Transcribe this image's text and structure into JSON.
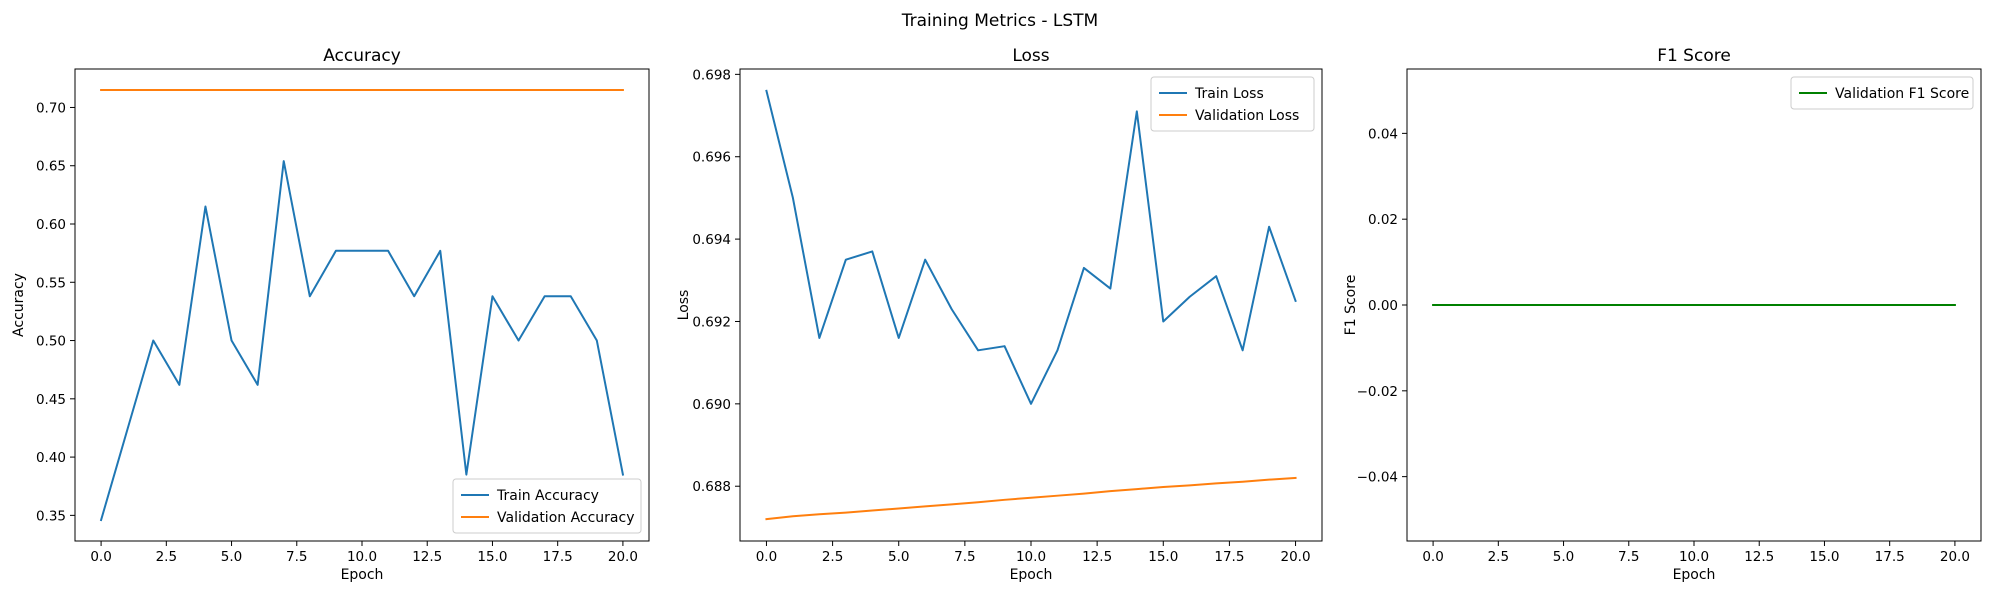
{
  "figure": {
    "suptitle": "Training Metrics - LSTM"
  },
  "chart_data": [
    {
      "type": "line",
      "title": "Accuracy",
      "xlabel": "Epoch",
      "ylabel": "Accuracy",
      "xlim": [
        -1,
        21
      ],
      "ylim": [
        0.328,
        0.733
      ],
      "xticks": [
        0.0,
        2.5,
        5.0,
        7.5,
        10.0,
        12.5,
        15.0,
        17.5,
        20.0
      ],
      "xtick_labels": [
        "0.0",
        "2.5",
        "5.0",
        "7.5",
        "10.0",
        "12.5",
        "15.0",
        "17.5",
        "20.0"
      ],
      "yticks": [
        0.35,
        0.4,
        0.45,
        0.5,
        0.55,
        0.6,
        0.65,
        0.7
      ],
      "ytick_labels": [
        "0.35",
        "0.40",
        "0.45",
        "0.50",
        "0.55",
        "0.60",
        "0.65",
        "0.70"
      ],
      "legend_position": "lower-right",
      "x": [
        0,
        1,
        2,
        3,
        4,
        5,
        6,
        7,
        8,
        9,
        10,
        11,
        12,
        13,
        14,
        15,
        16,
        17,
        18,
        19,
        20
      ],
      "series": [
        {
          "name": "Train Accuracy",
          "color": "#1f77b4",
          "values": [
            0.346,
            0.423,
            0.5,
            0.462,
            0.615,
            0.5,
            0.462,
            0.654,
            0.538,
            0.577,
            0.577,
            0.577,
            0.538,
            0.577,
            0.385,
            0.538,
            0.5,
            0.538,
            0.538,
            0.5,
            0.385
          ]
        },
        {
          "name": "Validation Accuracy",
          "color": "#ff7f0e",
          "values": [
            0.715,
            0.715,
            0.715,
            0.715,
            0.715,
            0.715,
            0.715,
            0.715,
            0.715,
            0.715,
            0.715,
            0.715,
            0.715,
            0.715,
            0.715,
            0.715,
            0.715,
            0.715,
            0.715,
            0.715,
            0.715
          ]
        }
      ]
    },
    {
      "type": "line",
      "title": "Loss",
      "xlabel": "Epoch",
      "ylabel": "Loss",
      "xlim": [
        -1,
        21
      ],
      "ylim": [
        0.68667,
        0.69813
      ],
      "xticks": [
        0.0,
        2.5,
        5.0,
        7.5,
        10.0,
        12.5,
        15.0,
        17.5,
        20.0
      ],
      "xtick_labels": [
        "0.0",
        "2.5",
        "5.0",
        "7.5",
        "10.0",
        "12.5",
        "15.0",
        "17.5",
        "20.0"
      ],
      "yticks": [
        0.688,
        0.69,
        0.692,
        0.694,
        0.696,
        0.698
      ],
      "ytick_labels": [
        "0.688",
        "0.690",
        "0.692",
        "0.694",
        "0.696",
        "0.698"
      ],
      "legend_position": "top-right",
      "x": [
        0,
        1,
        2,
        3,
        4,
        5,
        6,
        7,
        8,
        9,
        10,
        11,
        12,
        13,
        14,
        15,
        16,
        17,
        18,
        19,
        20
      ],
      "series": [
        {
          "name": "Train Loss",
          "color": "#1f77b4",
          "values": [
            0.6976,
            0.695,
            0.6916,
            0.6935,
            0.6937,
            0.6916,
            0.6935,
            0.6923,
            0.6913,
            0.6914,
            0.69,
            0.6913,
            0.6933,
            0.6928,
            0.6971,
            0.692,
            0.6926,
            0.6931,
            0.6913,
            0.6943,
            0.6925
          ]
        },
        {
          "name": "Validation Loss",
          "color": "#ff7f0e",
          "values": [
            0.6872,
            0.68727,
            0.68732,
            0.68736,
            0.68741,
            0.68746,
            0.68751,
            0.68756,
            0.68761,
            0.68767,
            0.68772,
            0.68777,
            0.68782,
            0.68788,
            0.68793,
            0.68798,
            0.68802,
            0.68807,
            0.68811,
            0.68816,
            0.6882
          ]
        }
      ]
    },
    {
      "type": "line",
      "title": "F1 Score",
      "xlabel": "Epoch",
      "ylabel": "F1 Score",
      "xlim": [
        -1,
        21
      ],
      "ylim": [
        -0.055,
        0.055
      ],
      "xticks": [
        0.0,
        2.5,
        5.0,
        7.5,
        10.0,
        12.5,
        15.0,
        17.5,
        20.0
      ],
      "xtick_labels": [
        "0.0",
        "2.5",
        "5.0",
        "7.5",
        "10.0",
        "12.5",
        "15.0",
        "17.5",
        "20.0"
      ],
      "yticks": [
        -0.04,
        -0.02,
        0.0,
        0.02,
        0.04
      ],
      "ytick_labels": [
        "−0.04",
        "−0.02",
        "0.00",
        "0.02",
        "0.04"
      ],
      "legend_position": "top-right",
      "x": [
        0,
        1,
        2,
        3,
        4,
        5,
        6,
        7,
        8,
        9,
        10,
        11,
        12,
        13,
        14,
        15,
        16,
        17,
        18,
        19,
        20
      ],
      "series": [
        {
          "name": "Validation F1 Score",
          "color": "#008000",
          "values": [
            0,
            0,
            0,
            0,
            0,
            0,
            0,
            0,
            0,
            0,
            0,
            0,
            0,
            0,
            0,
            0,
            0,
            0,
            0,
            0,
            0
          ]
        }
      ]
    }
  ]
}
